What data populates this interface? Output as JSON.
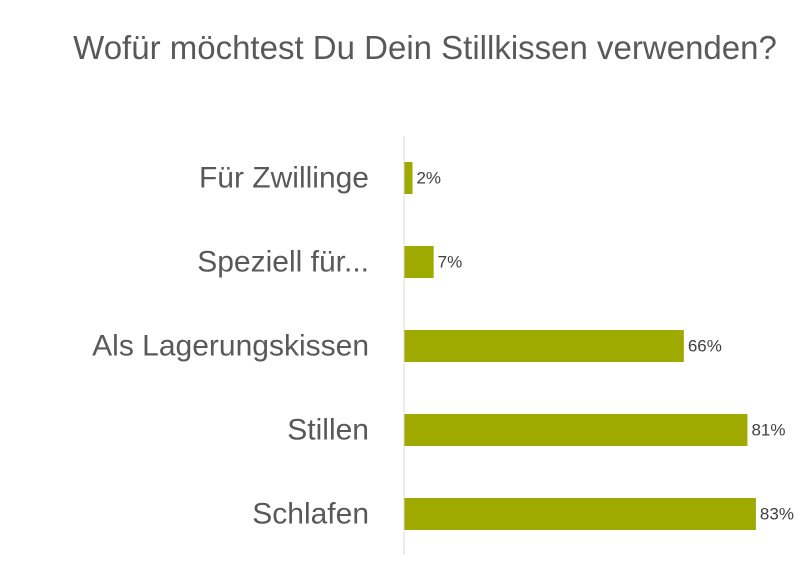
{
  "chart_data": {
    "type": "bar",
    "orientation": "horizontal",
    "title": "Wofür möchtest Du Dein Stillkissen verwenden?",
    "categories": [
      "Für Zwillinge",
      "Speziell für...",
      "Als Lagerungskissen",
      "Stillen",
      "Schlafen"
    ],
    "values": [
      2,
      7,
      66,
      81,
      83
    ],
    "value_labels": [
      "2%",
      "7%",
      "66%",
      "81%",
      "83%"
    ],
    "unit": "%",
    "xlim": [
      0,
      100
    ],
    "grid": false,
    "legend": "none",
    "colors": {
      "bar": "#9faa00",
      "axis": "#d9d9d9",
      "text": "#595959"
    }
  }
}
